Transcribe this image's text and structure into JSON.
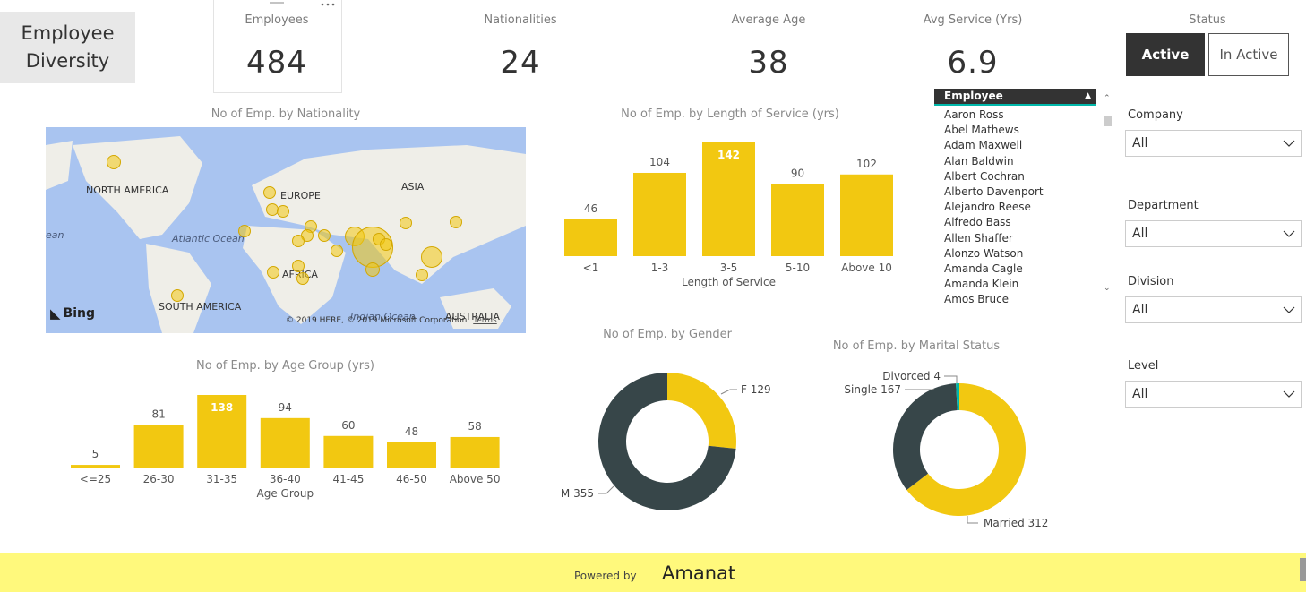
{
  "title": {
    "line1": "Employee",
    "line2": "Diversity"
  },
  "kpis": [
    {
      "label": "Employees",
      "value": "484"
    },
    {
      "label": "Nationalities",
      "value": "24"
    },
    {
      "label": "Average Age",
      "value": "38"
    },
    {
      "label": "Avg Service (Yrs)",
      "value": "6.9"
    }
  ],
  "status": {
    "label": "Status",
    "active": "Active",
    "inactive": "In Active",
    "selected": "Active"
  },
  "map": {
    "title": "No of Emp. by Nationality",
    "labels": [
      "NORTH AMERICA",
      "EUROPE",
      "ASIA",
      "Atlantic Ocean",
      "AFRICA",
      "SOUTH AMERICA",
      "Indian Ocean",
      "AUSTRALIA",
      "ean"
    ],
    "bing": "Bing",
    "copyright": "© 2019 HERE, © 2019 Microsoft Corporation",
    "terms": "Terms"
  },
  "employee_list": {
    "header": "Employee",
    "items": [
      "Aaron Ross",
      "Abel Mathews",
      "Adam Maxwell",
      "Alan Baldwin",
      "Albert Cochran",
      "Alberto Davenport",
      "Alejandro Reese",
      "Alfredo Bass",
      "Allen Shaffer",
      "Alonzo Watson",
      "Amanda Cagle",
      "Amanda Klein",
      "Amos Bruce"
    ]
  },
  "slicers": [
    {
      "label": "Company",
      "value": "All"
    },
    {
      "label": "Department",
      "value": "All"
    },
    {
      "label": "Division",
      "value": "All"
    },
    {
      "label": "Level",
      "value": "All"
    }
  ],
  "footer": {
    "powered_by": "Powered by",
    "brand": "Amanat"
  },
  "colors": {
    "accent": "#F2C811",
    "dark": "#374649",
    "teal": "#01B8AA"
  },
  "chart_data": [
    {
      "type": "bar",
      "title": "No of Emp. by Length of Service (yrs)",
      "xlabel": "Length of Service",
      "ylabel": "",
      "categories": [
        "<1",
        "1-3",
        "3-5",
        "5-10",
        "Above 10"
      ],
      "values": [
        46,
        104,
        142,
        90,
        102
      ],
      "highlight": "3-5"
    },
    {
      "type": "bar",
      "title": "No of Emp. by Age Group (yrs)",
      "xlabel": "Age Group",
      "ylabel": "",
      "categories": [
        "<=25",
        "26-30",
        "31-35",
        "36-40",
        "41-45",
        "46-50",
        "Above 50"
      ],
      "values": [
        5,
        81,
        138,
        94,
        60,
        48,
        58
      ],
      "highlight": "31-35"
    },
    {
      "type": "pie",
      "title": "No of Emp. by Gender",
      "slices": [
        {
          "label": "F 129",
          "value": 129,
          "color": "#F2C811"
        },
        {
          "label": "M 355",
          "value": 355,
          "color": "#374649"
        }
      ]
    },
    {
      "type": "pie",
      "title": "No of Emp. by Marital Status",
      "slices": [
        {
          "label": "Married 312",
          "value": 312,
          "color": "#F2C811"
        },
        {
          "label": "Single 167",
          "value": 167,
          "color": "#374649"
        },
        {
          "label": "Divorced 4",
          "value": 4,
          "color": "#01B8AA"
        }
      ]
    }
  ]
}
